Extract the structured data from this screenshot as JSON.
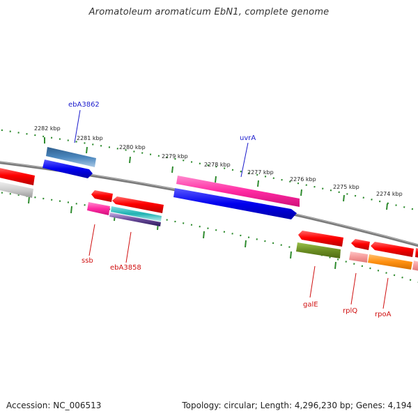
{
  "title": "Aromatoleum aromaticum EbN1, complete genome",
  "footer": {
    "accession": "Accession: NC_006513",
    "summary": "Topology: circular; Length: 4,296,230 bp; Genes: 4,194"
  },
  "colors": {
    "backbone": "#808080",
    "tick": "#2e8b2e",
    "forward_label": "#1a1acc",
    "reverse_label": "#d01010"
  },
  "ticks": [
    {
      "label": "2282 kbp"
    },
    {
      "label": "2281 kbp"
    },
    {
      "label": "2280 kbp"
    },
    {
      "label": "2279 kbp"
    },
    {
      "label": "2278 kbp"
    },
    {
      "label": "2277 kbp"
    },
    {
      "label": "2276 kbp"
    },
    {
      "label": "2275 kbp"
    },
    {
      "label": "2274 kbp"
    }
  ],
  "gene_labels": [
    {
      "text": "ebA3862",
      "strand": "forward"
    },
    {
      "text": "uvrA",
      "strand": "forward"
    },
    {
      "text": "ssb",
      "strand": "reverse"
    },
    {
      "text": "ebA3858",
      "strand": "reverse"
    },
    {
      "text": "galE",
      "strand": "reverse"
    },
    {
      "text": "rplQ",
      "strand": "reverse"
    },
    {
      "text": "rpoA",
      "strand": "reverse"
    }
  ]
}
